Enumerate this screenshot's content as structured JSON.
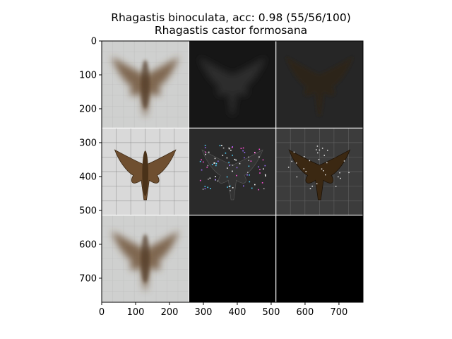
{
  "chart_data": {
    "type": "image-grid",
    "title": "Rhagastis binoculata, acc: 0.98 (55/56/100)",
    "subtitle": "Rhagastis castor formosana",
    "grid": {
      "rows": 3,
      "cols": 3
    },
    "xlim": [
      0,
      771
    ],
    "ylim": [
      771,
      0
    ],
    "xticks": [
      0,
      100,
      200,
      300,
      400,
      500,
      600,
      700
    ],
    "yticks": [
      0,
      100,
      200,
      300,
      400,
      500,
      600,
      700
    ],
    "colors": {
      "light_panel": "#cfd0cf",
      "dark_panel": "#161616",
      "mid_dark_panel": "#262626",
      "black_panel": "#000000",
      "moth_brown": "#6f4f30",
      "separator": "#ffffff"
    },
    "panels": [
      {
        "row": 0,
        "col": 0,
        "content": "blurred-moth-light"
      },
      {
        "row": 0,
        "col": 1,
        "content": "faint-moth-dark"
      },
      {
        "row": 0,
        "col": 2,
        "content": "dim-moth-dark"
      },
      {
        "row": 1,
        "col": 0,
        "content": "moth-specimen-grid"
      },
      {
        "row": 1,
        "col": 1,
        "content": "moth-mask-noise"
      },
      {
        "row": 1,
        "col": 2,
        "content": "moth-specimen-dark"
      },
      {
        "row": 2,
        "col": 0,
        "content": "blurred-moth-light"
      },
      {
        "row": 2,
        "col": 1,
        "content": "black"
      },
      {
        "row": 2,
        "col": 2,
        "content": "black"
      }
    ]
  }
}
